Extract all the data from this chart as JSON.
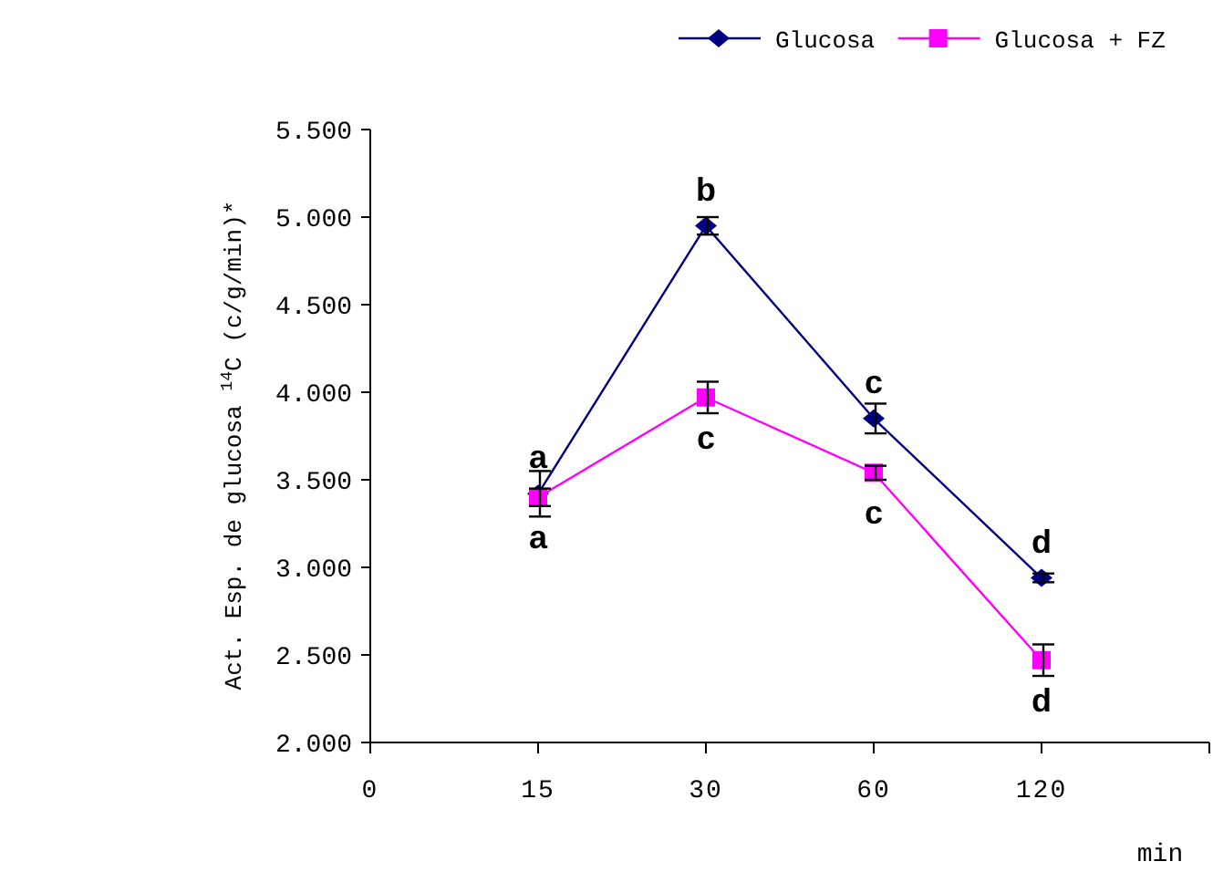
{
  "chart_data": {
    "type": "line",
    "xlabel": "min",
    "ylabel": "Act. Esp. de glucosa $^{14}$C (c/g/min)*",
    "categories": [
      "0",
      "15",
      "30",
      "60",
      "120",
      null
    ],
    "series": [
      {
        "name": "Glucosa",
        "color": "#000080",
        "marker": "diamond",
        "values": [
          null,
          3420,
          4950,
          3850,
          2940,
          null
        ],
        "errors": [
          null,
          130,
          50,
          85,
          25,
          null
        ]
      },
      {
        "name": "Glucosa + FZ",
        "color": "#ff00ff",
        "marker": "square",
        "values": [
          null,
          3400,
          3970,
          3540,
          2470,
          null
        ],
        "errors": [
          null,
          50,
          90,
          40,
          90,
          null
        ]
      }
    ],
    "ylim": [
      2000,
      5500
    ],
    "yticks": [
      {
        "value": 2000,
        "label": "2.000"
      },
      {
        "value": 2500,
        "label": "2.500"
      },
      {
        "value": 3000,
        "label": "3.000"
      },
      {
        "value": 3500,
        "label": "3.500"
      },
      {
        "value": 4000,
        "label": "4.000"
      },
      {
        "value": 4500,
        "label": "4.500"
      },
      {
        "value": 5000,
        "label": "5.000"
      },
      {
        "value": 5500,
        "label": "5.500"
      }
    ],
    "grid": false,
    "legend": "top right",
    "annotations": [
      {
        "text": "a",
        "x": "15",
        "y": 3420
      },
      {
        "text": "a",
        "x": "15",
        "y": 3400
      },
      {
        "text": "b",
        "x": "30",
        "y": 4950
      },
      {
        "text": "c",
        "x": "30",
        "y": 3970
      },
      {
        "text": "c",
        "x": "60",
        "y": 3850
      },
      {
        "text": "c",
        "x": "60",
        "y": 3540
      },
      {
        "text": "d",
        "x": "120",
        "y": 2940
      },
      {
        "text": "d",
        "x": "120",
        "y": 2470
      }
    ]
  }
}
